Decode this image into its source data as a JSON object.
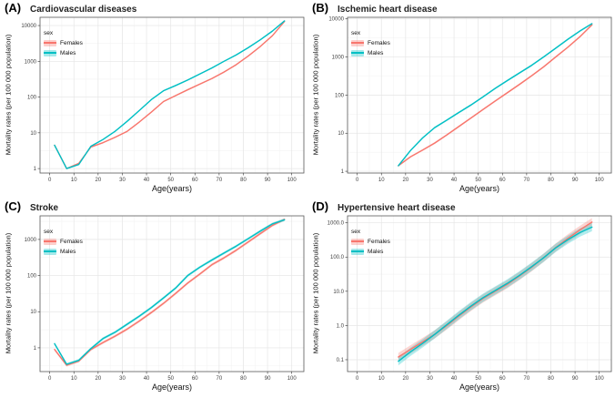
{
  "figure": {
    "background": "#ffffff"
  },
  "legend": {
    "title": "sex",
    "entries": [
      {
        "label": "Females",
        "color": "#F8766D"
      },
      {
        "label": "Males",
        "color": "#00BFC4"
      }
    ]
  },
  "chart_data": [
    {
      "type": "line",
      "panel_label": "(A)",
      "title": "Cardiovascular diseases",
      "xlabel": "Age(years)",
      "ylabel": "Mortality rates (per 100 000 population)",
      "y_scale": "log",
      "grid": true,
      "legend_position": "top-left",
      "x_ticks": [
        0,
        10,
        20,
        30,
        40,
        50,
        60,
        70,
        80,
        90,
        100
      ],
      "y_ticks": {
        "values": [
          1,
          10,
          100,
          1000,
          10000
        ],
        "labels": [
          "1",
          "10",
          "100",
          "1000",
          "10000"
        ]
      },
      "xlim": [
        -4,
        105
      ],
      "ylim": [
        0.75,
        17000
      ],
      "ribbon_factor": 1.05,
      "x": [
        2,
        7,
        12,
        17,
        22,
        27,
        32,
        37,
        42,
        47,
        52,
        57,
        62,
        67,
        72,
        77,
        82,
        87,
        92,
        97
      ],
      "series": [
        {
          "name": "Females",
          "color": "#F8766D",
          "values": [
            4.5,
            1.0,
            1.4,
            4.0,
            5.3,
            7.5,
            11,
            20,
            38,
            75,
            110,
            160,
            230,
            330,
            500,
            800,
            1400,
            2600,
            5200,
            13000
          ]
        },
        {
          "name": "Males",
          "color": "#00BFC4",
          "values": [
            4.5,
            1.0,
            1.3,
            4.2,
            6.5,
            11,
            21,
            42,
            85,
            150,
            210,
            300,
            440,
            650,
            1000,
            1500,
            2400,
            4000,
            7000,
            13500
          ]
        }
      ]
    },
    {
      "type": "line",
      "panel_label": "(B)",
      "title": "Ischemic heart disease",
      "xlabel": "Age(years)",
      "ylabel": "Mortality rates (per 100 000 population)",
      "y_scale": "log",
      "grid": true,
      "legend_position": "top-left",
      "x_ticks": [
        0,
        10,
        20,
        30,
        40,
        50,
        60,
        70,
        80,
        90,
        100
      ],
      "y_ticks": {
        "values": [
          1,
          10,
          100,
          1000,
          10000
        ],
        "labels": [
          "1",
          "10",
          "100",
          "1000",
          "10000"
        ]
      },
      "xlim": [
        -4,
        105
      ],
      "ylim": [
        0.9,
        11000
      ],
      "ribbon_factor": 1.06,
      "x": [
        17,
        22,
        27,
        32,
        37,
        42,
        47,
        52,
        57,
        62,
        67,
        72,
        77,
        82,
        87,
        92,
        97
      ],
      "series": [
        {
          "name": "Females",
          "color": "#F8766D",
          "values": [
            1.4,
            2.4,
            3.6,
            5.5,
            9,
            15,
            25,
            42,
            70,
            115,
            190,
            320,
            550,
            1000,
            1800,
            3400,
            7000
          ]
        },
        {
          "name": "Males",
          "color": "#00BFC4",
          "values": [
            1.4,
            3.5,
            7.5,
            14,
            22,
            35,
            55,
            90,
            150,
            240,
            380,
            600,
            1000,
            1700,
            2900,
            4800,
            7500
          ]
        }
      ]
    },
    {
      "type": "line",
      "panel_label": "(C)",
      "title": "Stroke",
      "xlabel": "Age(years)",
      "ylabel": "Mortality rates (per 100 000 population)",
      "y_scale": "log",
      "grid": true,
      "legend_position": "top-left",
      "x_ticks": [
        0,
        10,
        20,
        30,
        40,
        50,
        60,
        70,
        80,
        90,
        100
      ],
      "y_ticks": {
        "values": [
          1,
          10,
          100,
          1000
        ],
        "labels": [
          "1",
          "10",
          "100",
          "1000"
        ]
      },
      "xlim": [
        -4,
        105
      ],
      "ylim": [
        0.22,
        4500
      ],
      "ribbon_factor": 1.09,
      "x": [
        2,
        7,
        12,
        17,
        22,
        27,
        32,
        37,
        42,
        47,
        52,
        57,
        62,
        67,
        72,
        77,
        82,
        87,
        92,
        97
      ],
      "series": [
        {
          "name": "Females",
          "color": "#F8766D",
          "values": [
            0.9,
            0.33,
            0.43,
            0.9,
            1.4,
            2.1,
            3.3,
            5.5,
            9.5,
            17,
            32,
            62,
            110,
            200,
            310,
            500,
            850,
            1450,
            2450,
            3600
          ]
        },
        {
          "name": "Males",
          "color": "#00BFC4",
          "values": [
            1.3,
            0.35,
            0.45,
            0.95,
            1.8,
            2.7,
            4.5,
            7.5,
            13,
            24,
            45,
            100,
            170,
            270,
            420,
            650,
            1050,
            1700,
            2700,
            3500
          ]
        }
      ]
    },
    {
      "type": "line",
      "panel_label": "(D)",
      "title": "Hypertensive heart disease",
      "xlabel": "Age(years)",
      "ylabel": "Mortality rates (per 100 000 population)",
      "y_scale": "log",
      "grid": true,
      "legend_position": "top-left",
      "x_ticks": [
        0,
        10,
        20,
        30,
        40,
        50,
        60,
        70,
        80,
        90,
        100
      ],
      "y_ticks": {
        "values": [
          0.1,
          1,
          10,
          100,
          1000
        ],
        "labels": [
          "0.1",
          "1.0",
          "10.0",
          "100.0",
          "1000.0"
        ]
      },
      "xlim": [
        -4,
        105
      ],
      "ylim": [
        0.045,
        1600
      ],
      "ribbon_factor": 1.32,
      "x": [
        17,
        22,
        27,
        32,
        37,
        42,
        47,
        52,
        57,
        62,
        67,
        72,
        77,
        82,
        87,
        92,
        97
      ],
      "series": [
        {
          "name": "Females",
          "color": "#F8766D",
          "values": [
            0.12,
            0.2,
            0.33,
            0.55,
            1.0,
            1.9,
            3.5,
            6.2,
            10,
            16,
            28,
            50,
            95,
            190,
            350,
            620,
            1050
          ]
        },
        {
          "name": "Males",
          "color": "#00BFC4",
          "values": [
            0.09,
            0.17,
            0.3,
            0.55,
            1.05,
            2.0,
            3.7,
            6.5,
            10.5,
            17,
            29,
            52,
            95,
            185,
            320,
            520,
            750
          ]
        }
      ]
    }
  ]
}
